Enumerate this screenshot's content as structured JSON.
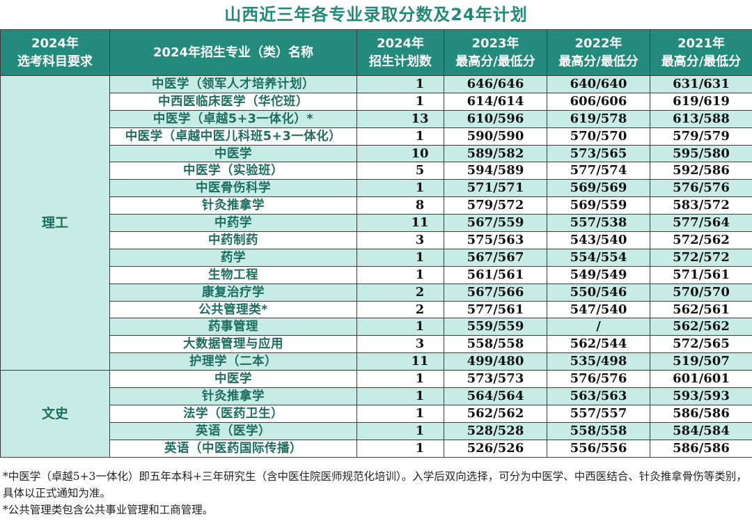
{
  "title": "山西近三年各专业录取分数及24年计划",
  "headers": {
    "col1_line1": "2024年",
    "col1_line2": "选考科目要求",
    "col2": "2024年招生专业（类）名称",
    "col3_line1": "2024年",
    "col3_line2": "招生计划数",
    "col4_line1": "2023年",
    "col4_line2": "最高分/最低分",
    "col5_line1": "2022年",
    "col5_line2": "最高分/最低分",
    "col6_line1": "2021年",
    "col6_line2": "最高分/最低分"
  },
  "groups": [
    {
      "category": "理工",
      "rows": [
        {
          "major": "中医学（领军人才培养计划）",
          "plan": "1",
          "s2023": "646/646",
          "s2022": "640/640",
          "s2021": "631/631"
        },
        {
          "major": "中西医临床医学（华佗班）",
          "plan": "1",
          "s2023": "614/614",
          "s2022": "606/606",
          "s2021": "619/619"
        },
        {
          "major": "中医学（卓越5+3一体化）*",
          "plan": "13",
          "s2023": "610/596",
          "s2022": "619/578",
          "s2021": "613/588"
        },
        {
          "major": "中医学（卓越中医儿科班5+3一体化）",
          "plan": "1",
          "s2023": "590/590",
          "s2022": "570/570",
          "s2021": "579/579"
        },
        {
          "major": "中医学",
          "plan": "10",
          "s2023": "589/582",
          "s2022": "573/565",
          "s2021": "595/580"
        },
        {
          "major": "中医学（实验班）",
          "plan": "5",
          "s2023": "594/589",
          "s2022": "577/574",
          "s2021": "592/586"
        },
        {
          "major": "中医骨伤科学",
          "plan": "1",
          "s2023": "571/571",
          "s2022": "569/569",
          "s2021": "576/576"
        },
        {
          "major": "针灸推拿学",
          "plan": "8",
          "s2023": "579/572",
          "s2022": "569/559",
          "s2021": "583/572"
        },
        {
          "major": "中药学",
          "plan": "11",
          "s2023": "567/559",
          "s2022": "557/538",
          "s2021": "577/564"
        },
        {
          "major": "中药制药",
          "plan": "3",
          "s2023": "575/563",
          "s2022": "543/540",
          "s2021": "572/562"
        },
        {
          "major": "药学",
          "plan": "1",
          "s2023": "567/567",
          "s2022": "554/554",
          "s2021": "572/572"
        },
        {
          "major": "生物工程",
          "plan": "1",
          "s2023": "561/561",
          "s2022": "549/549",
          "s2021": "571/561"
        },
        {
          "major": "康复治疗学",
          "plan": "2",
          "s2023": "567/566",
          "s2022": "550/546",
          "s2021": "570/570"
        },
        {
          "major": "公共管理类*",
          "plan": "2",
          "s2023": "577/561",
          "s2022": "547/540",
          "s2021": "562/561"
        },
        {
          "major": "药事管理",
          "plan": "1",
          "s2023": "559/559",
          "s2022": "/",
          "s2021": "562/562"
        },
        {
          "major": "大数据管理与应用",
          "plan": "3",
          "s2023": "558/558",
          "s2022": "562/544",
          "s2021": "572/565"
        },
        {
          "major": "护理学（二本）",
          "plan": "11",
          "s2023": "499/480",
          "s2022": "535/498",
          "s2021": "519/507"
        }
      ]
    },
    {
      "category": "文史",
      "rows": [
        {
          "major": "中医学",
          "plan": "1",
          "s2023": "573/573",
          "s2022": "576/576",
          "s2021": "601/601"
        },
        {
          "major": "针灸推拿学",
          "plan": "1",
          "s2023": "564/564",
          "s2022": "563/563",
          "s2021": "593/593"
        },
        {
          "major": "法学（医药卫生）",
          "plan": "1",
          "s2023": "562/562",
          "s2022": "557/557",
          "s2021": "586/586"
        },
        {
          "major": "英语（医学）",
          "plan": "1",
          "s2023": "528/528",
          "s2022": "558/558",
          "s2021": "584/584"
        },
        {
          "major": "英语（中医药国际传播）",
          "plan": "1",
          "s2023": "526/526",
          "s2022": "556/556",
          "s2021": "586/586"
        }
      ]
    }
  ],
  "notes": {
    "note1": "*中医学（卓越5+3一体化）即五年本科+三年研究生（含中医住院医师规范化培训）。入学后双向选择，可分为中医学、中西医结合、针灸推拿骨伤等类别，具体以正式通知为准。",
    "note2": "*公共管理类包含公共事业管理和工商管理。"
  },
  "colors": {
    "header_bg": "#228b7b",
    "title_color": "#1f8a78",
    "stripe": "#c7ece6"
  }
}
